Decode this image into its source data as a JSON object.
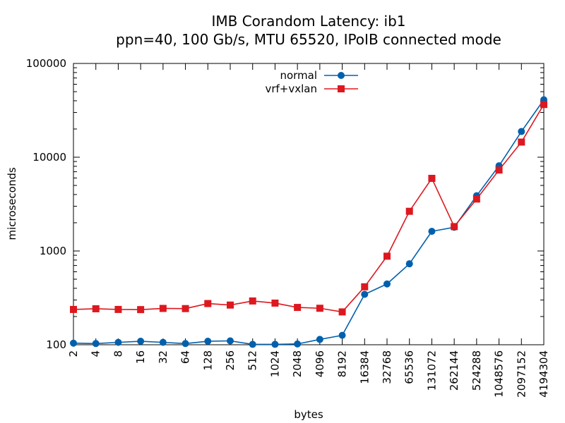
{
  "chart_data": {
    "type": "line",
    "title": "IMB Corandom Latency: ib1",
    "subtitle": "ppn=40, 100 Gb/s, MTU 65520, IPoIB connected mode",
    "xlabel": "bytes",
    "ylabel": "microseconds",
    "x_scale": "log2",
    "y_scale": "log10",
    "xlim": [
      2,
      4194304
    ],
    "ylim": [
      100,
      100000
    ],
    "x": [
      2,
      4,
      8,
      16,
      32,
      64,
      128,
      256,
      512,
      1024,
      2048,
      4096,
      8192,
      16384,
      32768,
      65536,
      131072,
      262144,
      524288,
      1048576,
      2097152,
      4194304
    ],
    "x_tick_labels": [
      "2",
      "4",
      "8",
      "16",
      "32",
      "64",
      "128",
      "256",
      "512",
      "1024",
      "2048",
      "4096",
      "8192",
      "16384",
      "32768",
      "65536",
      "131072",
      "262144",
      "524288",
      "1048576",
      "2097152",
      "4194304"
    ],
    "y_ticks": [
      100,
      1000,
      10000,
      100000
    ],
    "y_tick_labels": [
      "100",
      "1000",
      "10000",
      "100000"
    ],
    "grid": false,
    "legend_position": "top-center",
    "series": [
      {
        "name": "normal",
        "color": "#0060ad",
        "marker": "circle",
        "values": [
          104,
          103,
          106,
          109,
          106,
          103,
          109,
          110,
          101,
          101,
          102,
          114,
          126,
          345,
          445,
          730,
          1620,
          1790,
          3880,
          8100,
          18800,
          41000
        ]
      },
      {
        "name": "vrf+vxlan",
        "color": "#dd181f",
        "marker": "square",
        "values": [
          238,
          242,
          238,
          237,
          244,
          243,
          275,
          265,
          293,
          278,
          250,
          245,
          224,
          415,
          880,
          2650,
          5950,
          1820,
          3580,
          7300,
          14500,
          36500
        ]
      }
    ]
  }
}
